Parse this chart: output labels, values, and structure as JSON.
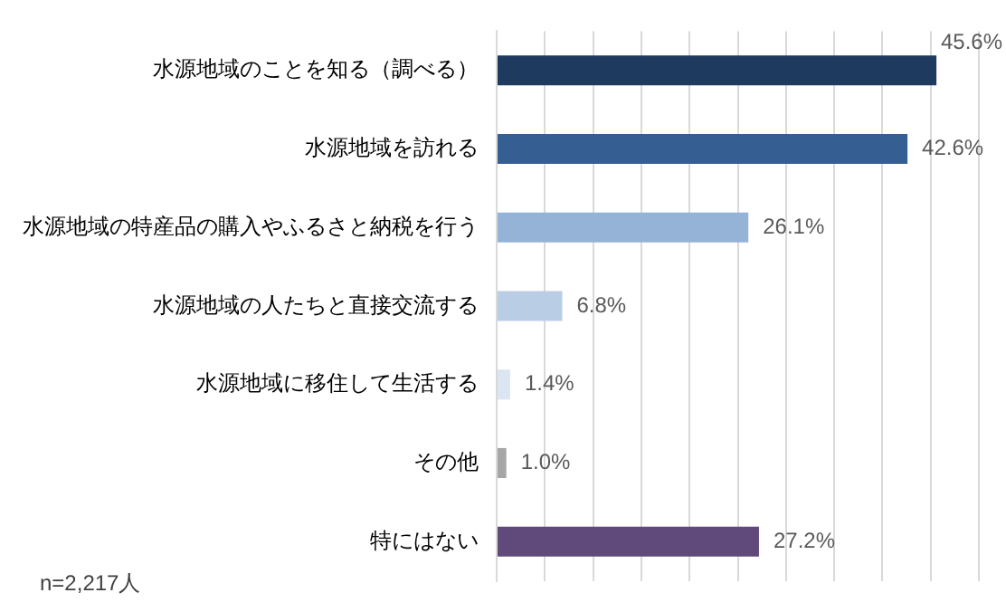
{
  "chart_data": {
    "type": "bar",
    "orientation": "horizontal",
    "categories": [
      "水源地域のことを知る（調べる）",
      "水源地域を訪れる",
      "水源地域の特産品の購入やふるさと納税を行う",
      "水源地域の人たちと直接交流する",
      "水源地域に移住して生活する",
      "その他",
      "特にはない"
    ],
    "values": [
      45.6,
      42.6,
      26.1,
      6.8,
      1.4,
      1.0,
      27.2
    ],
    "colors": [
      "#1f3a5f",
      "#355f92",
      "#95b3d7",
      "#b9cde5",
      "#dce6f2",
      "#a6a6a6",
      "#604a7b"
    ],
    "value_labels": [
      "45.6%",
      "42.6%",
      "26.1%",
      "6.8%",
      "1.4%",
      "1.0%",
      "27.2%"
    ],
    "xlim": [
      0,
      50
    ],
    "xticks": [
      {
        "value": 0,
        "label": null
      },
      {
        "value": 5,
        "label": null
      },
      {
        "value": 10,
        "label": null
      },
      {
        "value": 15,
        "label": null
      },
      {
        "value": 20,
        "label": null
      },
      {
        "value": 25,
        "label": null
      },
      {
        "value": 30,
        "label": null
      },
      {
        "value": 35,
        "label": null
      },
      {
        "value": 40,
        "label": null
      },
      {
        "value": 45,
        "label": null
      },
      {
        "value": 50,
        "label": null
      }
    ],
    "tick_labels": "y",
    "grid": "x",
    "legend": false,
    "annotations": [
      "n=2,217人"
    ]
  }
}
